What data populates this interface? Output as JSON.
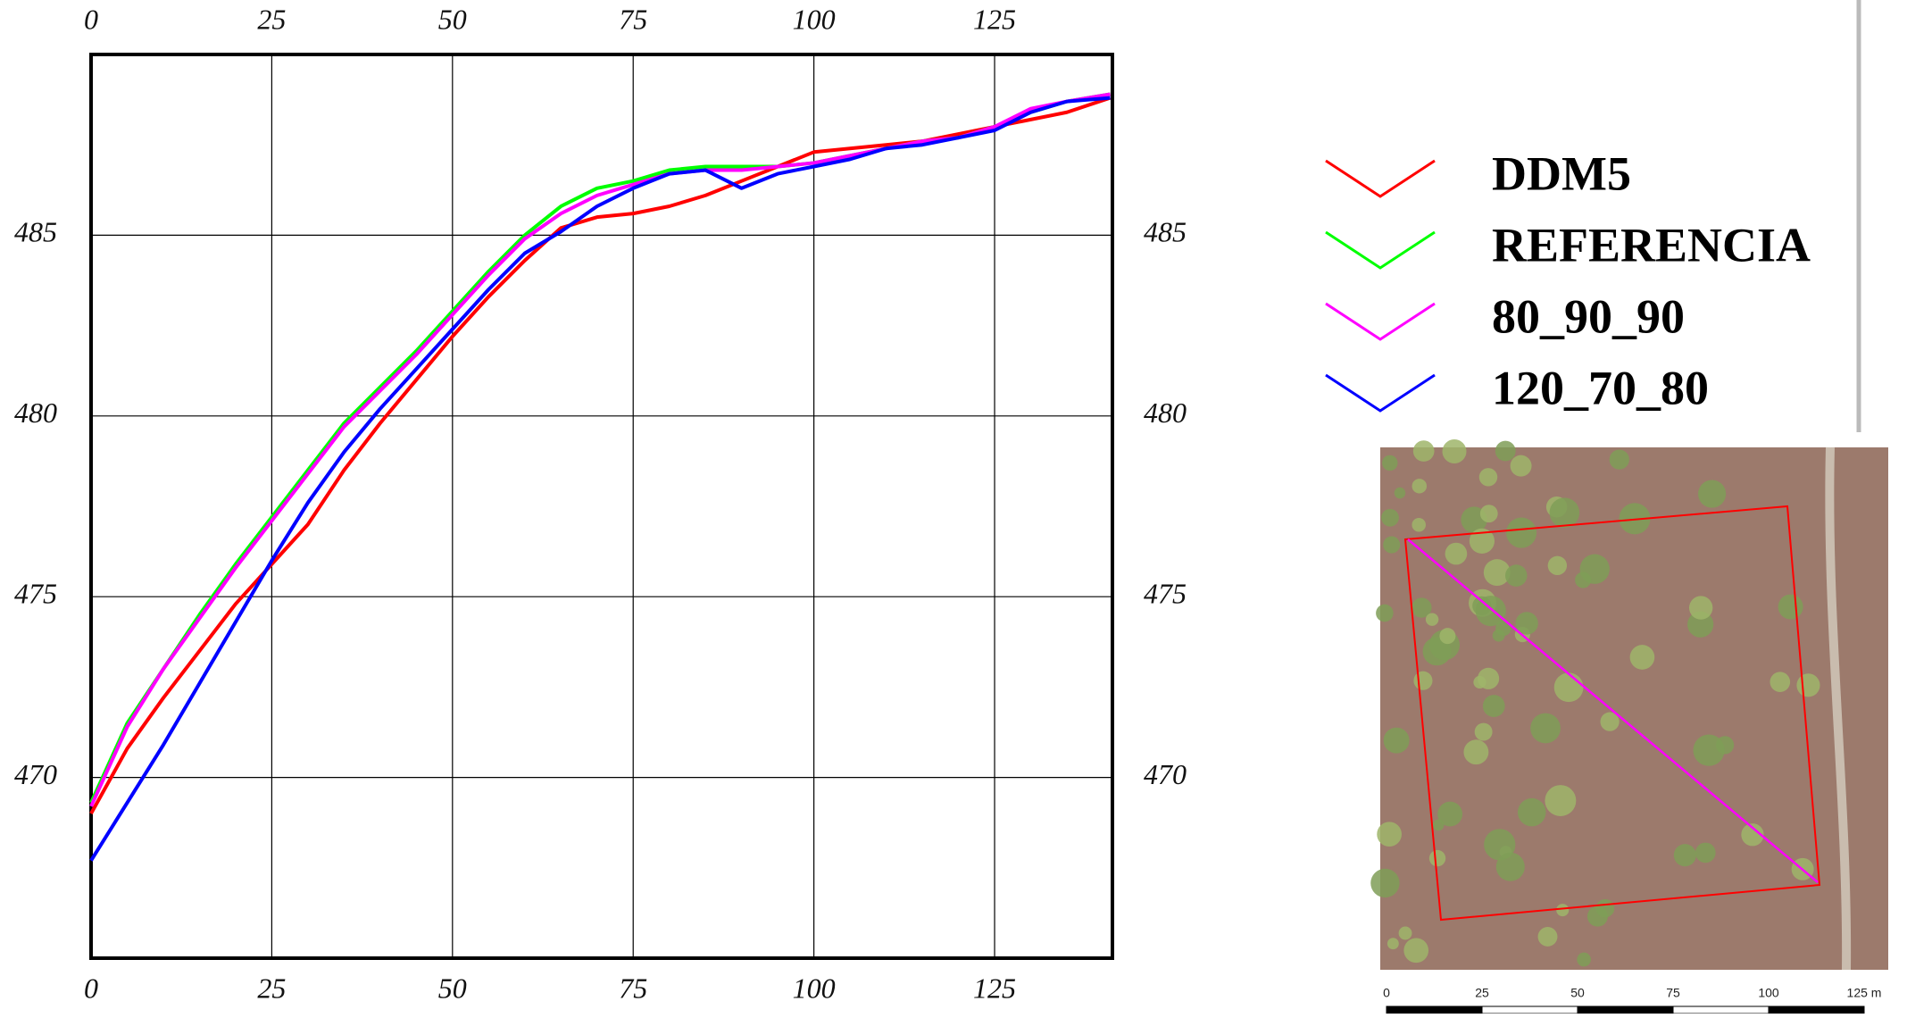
{
  "chart_data": {
    "type": "line",
    "x": [
      0,
      5,
      10,
      15,
      20,
      25,
      30,
      35,
      40,
      45,
      50,
      55,
      60,
      65,
      70,
      75,
      80,
      85,
      90,
      95,
      100,
      105,
      110,
      115,
      120,
      125,
      130,
      135,
      141
    ],
    "series": [
      {
        "name": "DDM5",
        "color": "#ff0000",
        "values": [
          469.0,
          470.8,
          472.2,
          473.5,
          474.8,
          475.9,
          477.0,
          478.5,
          479.8,
          481.0,
          482.2,
          483.3,
          484.3,
          485.2,
          485.5,
          485.6,
          485.8,
          486.1,
          486.5,
          486.9,
          487.3,
          487.4,
          487.5,
          487.6,
          487.8,
          488.0,
          488.2,
          488.4,
          488.8
        ]
      },
      {
        "name": "REFERENCIA",
        "color": "#00ff00",
        "values": [
          469.3,
          471.5,
          473.0,
          474.5,
          475.9,
          477.2,
          478.5,
          479.8,
          480.8,
          481.8,
          482.9,
          484.0,
          485.0,
          485.8,
          486.3,
          486.5,
          486.8,
          486.9,
          486.9,
          486.9,
          487.0,
          487.2,
          487.4,
          487.6,
          487.7,
          488.0,
          488.4,
          488.7,
          488.9
        ]
      },
      {
        "name": "80_90_90",
        "color": "#ff00ff",
        "values": [
          469.2,
          471.4,
          473.0,
          474.4,
          475.8,
          477.1,
          478.4,
          479.7,
          480.7,
          481.7,
          482.8,
          483.9,
          484.9,
          485.6,
          486.1,
          486.4,
          486.7,
          486.8,
          486.8,
          486.9,
          487.0,
          487.2,
          487.4,
          487.6,
          487.7,
          488.0,
          488.5,
          488.7,
          488.9
        ]
      },
      {
        "name": "120_70_80",
        "color": "#0000ff",
        "values": [
          467.7,
          469.3,
          470.9,
          472.6,
          474.3,
          476.0,
          477.6,
          479.0,
          480.2,
          481.3,
          482.4,
          483.5,
          484.5,
          485.1,
          485.8,
          486.3,
          486.7,
          486.8,
          486.3,
          486.7,
          486.9,
          487.1,
          487.4,
          487.5,
          487.7,
          487.9,
          488.4,
          488.7,
          488.8
        ]
      }
    ],
    "xlim": [
      0,
      141.3
    ],
    "xticks": [
      0,
      25,
      50,
      75,
      100,
      125
    ],
    "ylim": [
      465,
      490
    ],
    "yticks": [
      470,
      475,
      480,
      485
    ],
    "grid": true
  },
  "map": {
    "scale_labels": [
      "0",
      "25",
      "50",
      "75",
      "100",
      "125 m"
    ]
  }
}
